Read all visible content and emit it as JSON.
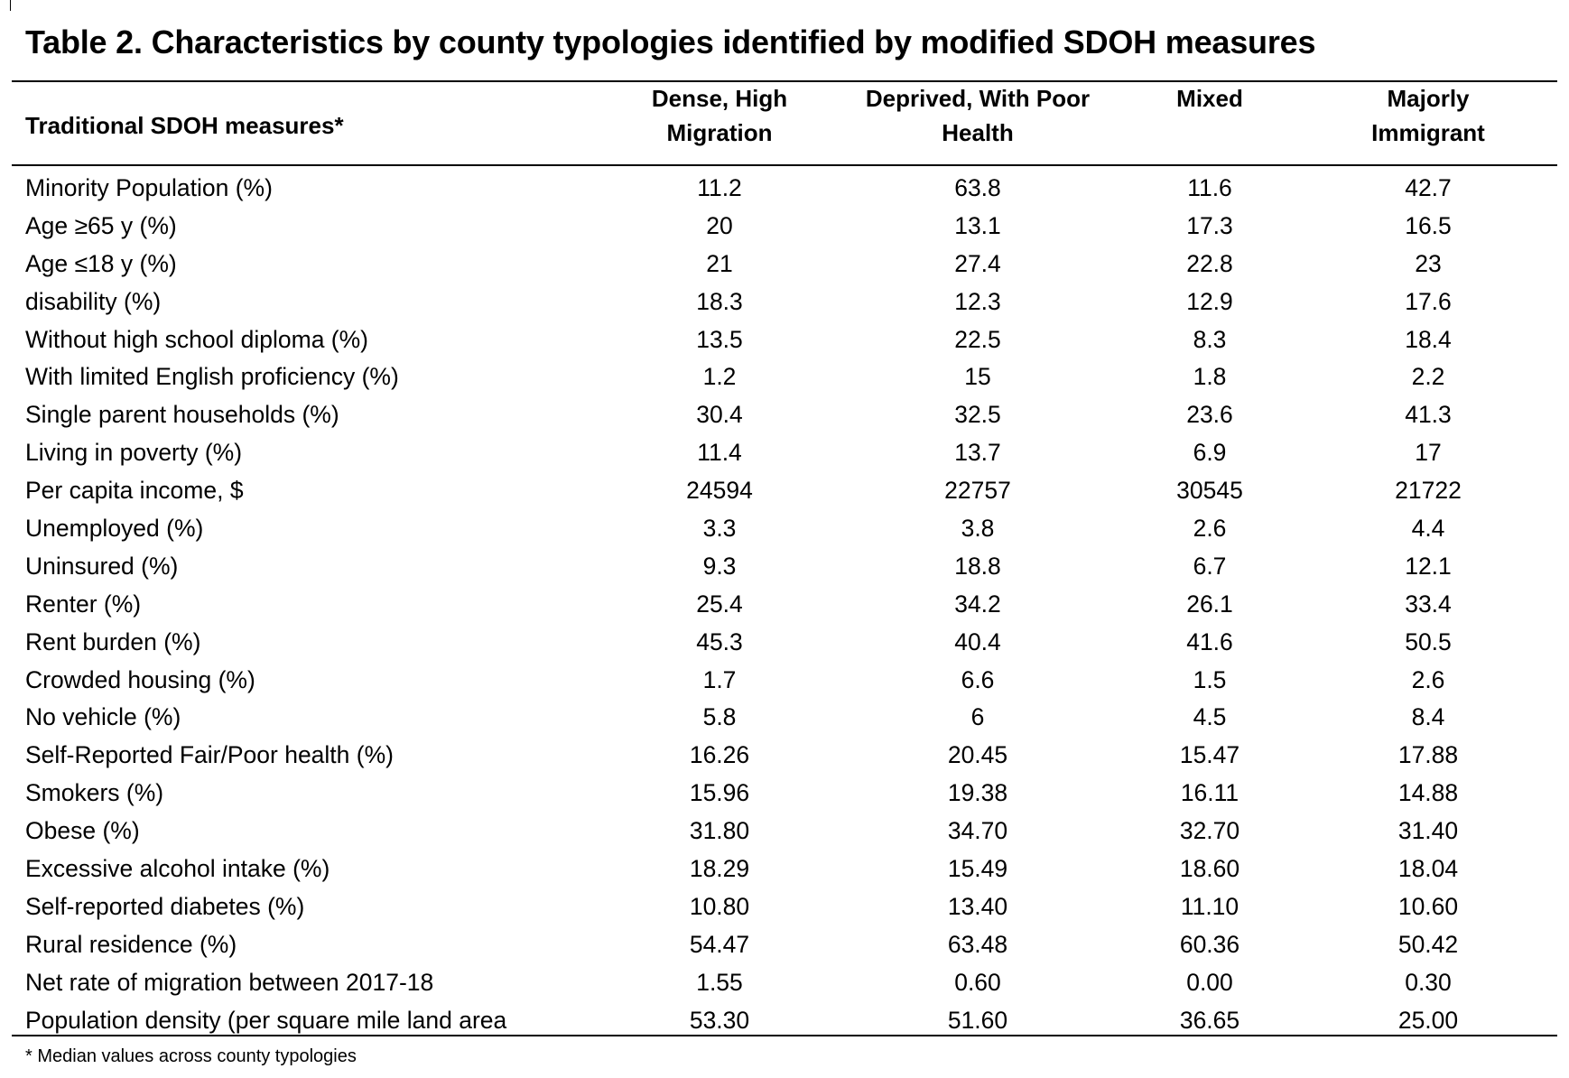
{
  "title": "Table 2. Characteristics by county typologies identified by modified SDOH measures",
  "header": {
    "label": "Traditional SDOH measures*",
    "columns": [
      [
        "Dense, High",
        "Migration"
      ],
      [
        "Deprived, With Poor",
        "Health"
      ],
      [
        "Mixed",
        ""
      ],
      [
        "Majorly",
        "Immigrant"
      ]
    ]
  },
  "rows": [
    {
      "label": "Minority Population (%)",
      "values": [
        "11.2",
        "63.8",
        "11.6",
        "42.7"
      ]
    },
    {
      "label": "Age ≥65 y (%)",
      "values": [
        "20",
        "13.1",
        "17.3",
        "16.5"
      ]
    },
    {
      "label": "Age ≤18 y (%)",
      "values": [
        "21",
        "27.4",
        "22.8",
        "23"
      ]
    },
    {
      "label": "disability (%)",
      "values": [
        "18.3",
        "12.3",
        "12.9",
        "17.6"
      ]
    },
    {
      "label": "Without high school diploma (%)",
      "values": [
        "13.5",
        "22.5",
        "8.3",
        "18.4"
      ]
    },
    {
      "label": "With limited English proficiency (%)",
      "values": [
        "1.2",
        "15",
        "1.8",
        "2.2"
      ]
    },
    {
      "label": "Single parent households (%)",
      "values": [
        "30.4",
        "32.5",
        "23.6",
        "41.3"
      ]
    },
    {
      "label": "Living in poverty (%)",
      "values": [
        "11.4",
        "13.7",
        "6.9",
        "17"
      ]
    },
    {
      "label": "Per capita income, $",
      "values": [
        "24594",
        "22757",
        "30545",
        "21722"
      ]
    },
    {
      "label": "Unemployed (%)",
      "values": [
        "3.3",
        "3.8",
        "2.6",
        "4.4"
      ]
    },
    {
      "label": "Uninsured (%)",
      "values": [
        "9.3",
        "18.8",
        "6.7",
        "12.1"
      ]
    },
    {
      "label": "Renter (%)",
      "values": [
        "25.4",
        "34.2",
        "26.1",
        "33.4"
      ]
    },
    {
      "label": "Rent burden (%)",
      "values": [
        "45.3",
        "40.4",
        "41.6",
        "50.5"
      ]
    },
    {
      "label": "Crowded housing (%)",
      "values": [
        "1.7",
        "6.6",
        "1.5",
        "2.6"
      ]
    },
    {
      "label": "No vehicle (%)",
      "values": [
        "5.8",
        "6",
        "4.5",
        "8.4"
      ]
    },
    {
      "label": "Self-Reported Fair/Poor health (%)",
      "values": [
        "16.26",
        "20.45",
        "15.47",
        "17.88"
      ]
    },
    {
      "label": "Smokers (%)",
      "values": [
        "15.96",
        "19.38",
        "16.11",
        "14.88"
      ]
    },
    {
      "label": "Obese (%)",
      "values": [
        "31.80",
        "34.70",
        "32.70",
        "31.40"
      ]
    },
    {
      "label": "Excessive alcohol intake (%)",
      "values": [
        "18.29",
        "15.49",
        "18.60",
        "18.04"
      ]
    },
    {
      "label": "Self-reported diabetes (%)",
      "values": [
        "10.80",
        "13.40",
        "11.10",
        "10.60"
      ]
    },
    {
      "label": "Rural residence (%)",
      "values": [
        "54.47",
        "63.48",
        "60.36",
        "50.42"
      ]
    },
    {
      "label": "Net rate of migration between 2017-18",
      "values": [
        "1.55",
        "0.60",
        "0.00",
        "0.30"
      ]
    },
    {
      "label": "Population density (per square mile land area",
      "values": [
        "53.30",
        "51.60",
        "36.65",
        "25.00"
      ]
    }
  ],
  "footnote": "* Median values across county typologies"
}
